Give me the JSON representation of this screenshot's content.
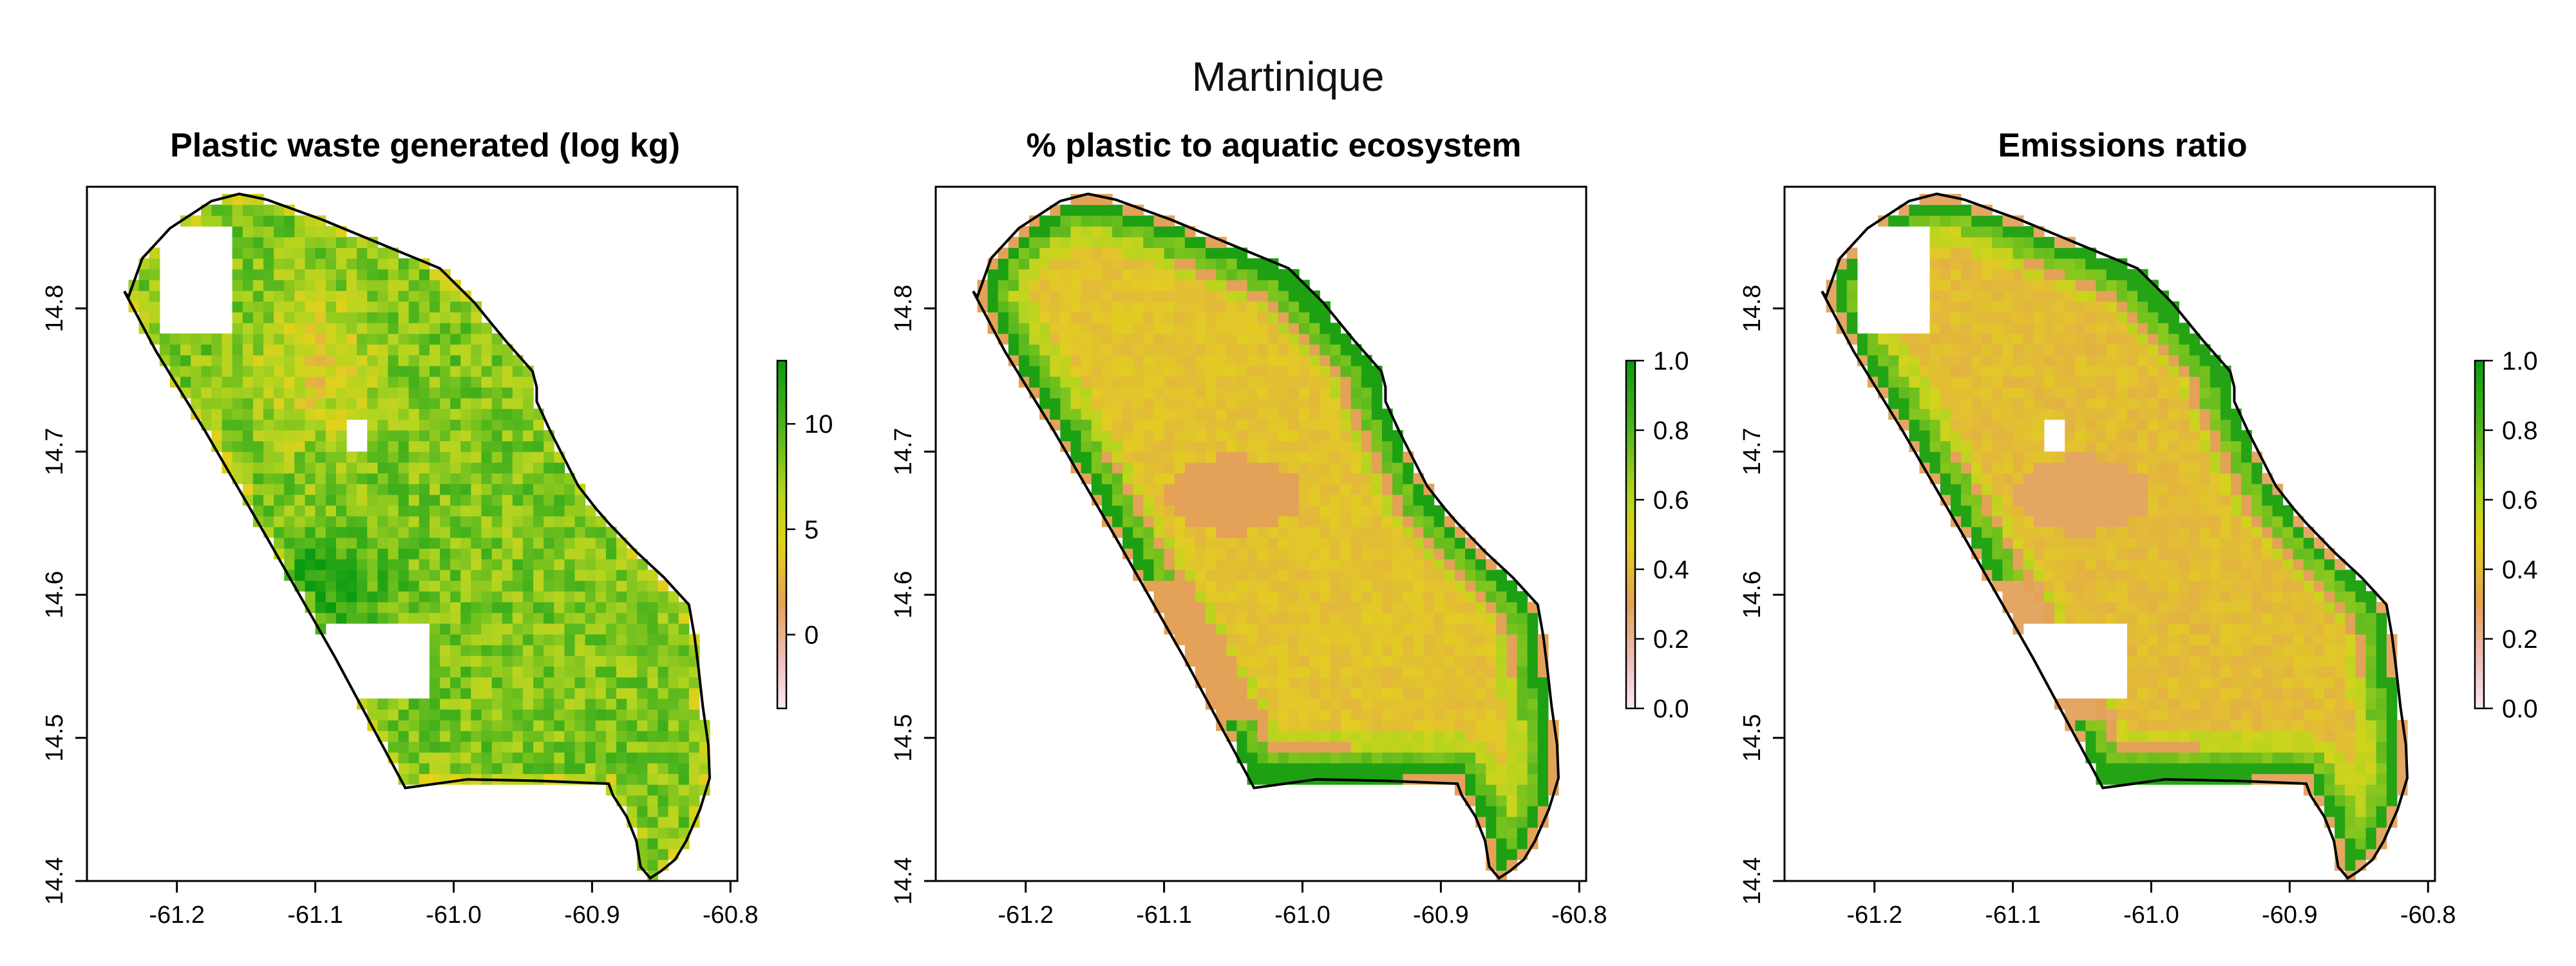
{
  "figure_title": "Martinique",
  "colors": {
    "scale": [
      "#ffffff",
      "#f3c6d3",
      "#e1a15a",
      "#dfdd1e",
      "#96cf22",
      "#46b51f",
      "#0f9a12"
    ],
    "outline": "#000000",
    "land_low": "#e3a257",
    "land_high": "#1b9b13"
  },
  "x_ticks": [
    "-61.2",
    "-61.1",
    "-61.0",
    "-60.9",
    "-60.8"
  ],
  "y_ticks": [
    "14.4",
    "14.5",
    "14.6",
    "14.7",
    "14.8"
  ],
  "panels": [
    {
      "title": "Plastic waste generated (log kg)",
      "legend_ticks": [
        {
          "label": "10",
          "value": 10
        },
        {
          "label": "5",
          "value": 5
        },
        {
          "label": "0",
          "value": 0
        }
      ],
      "legend_range": [
        -3.5,
        13
      ]
    },
    {
      "title": "% plastic to aquatic ecosystem",
      "legend_ticks": [
        {
          "label": "1.0",
          "value": 1.0
        },
        {
          "label": "0.8",
          "value": 0.8
        },
        {
          "label": "0.6",
          "value": 0.6
        },
        {
          "label": "0.4",
          "value": 0.4
        },
        {
          "label": "0.2",
          "value": 0.2
        },
        {
          "label": "0.0",
          "value": 0.0
        }
      ],
      "legend_range": [
        0,
        1
      ]
    },
    {
      "title": "Emissions ratio",
      "legend_ticks": [
        {
          "label": "1.0",
          "value": 1.0
        },
        {
          "label": "0.8",
          "value": 0.8
        },
        {
          "label": "0.6",
          "value": 0.6
        },
        {
          "label": "0.4",
          "value": 0.4
        },
        {
          "label": "0.2",
          "value": 0.2
        },
        {
          "label": "0.0",
          "value": 0.0
        }
      ],
      "legend_range": [
        0,
        1
      ]
    }
  ]
}
